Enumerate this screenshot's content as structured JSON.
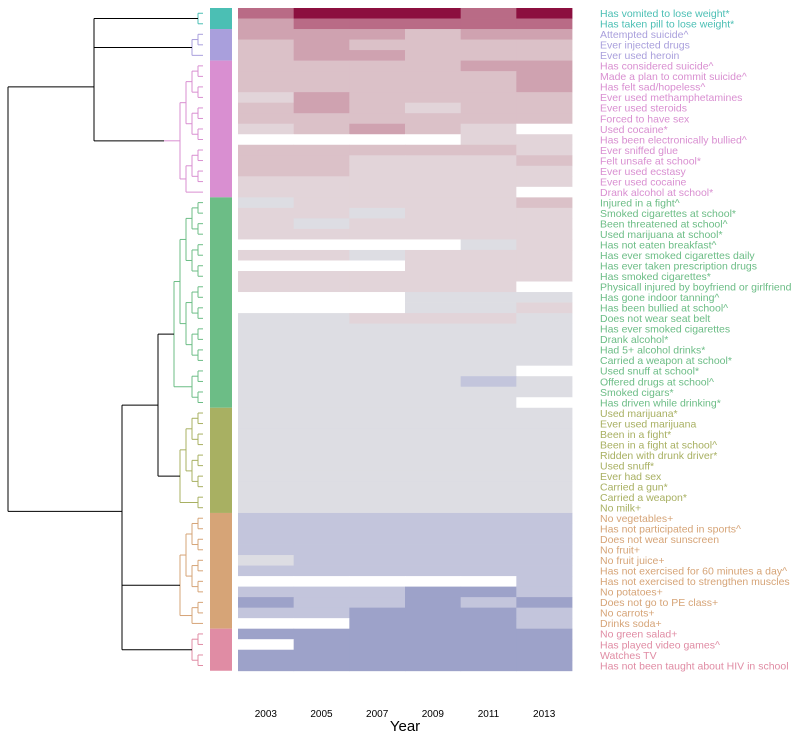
{
  "chart_data": {
    "type": "heatmap",
    "xlabel": "Year",
    "ylabel": "",
    "x": [
      "2003",
      "2005",
      "2007",
      "2009",
      "2011",
      "2013"
    ],
    "dendrogram": true,
    "cluster_colors": {
      "1": "#4bbfb4",
      "2": "#a99fdc",
      "3": "#d98fd1",
      "4": "#6cbd86",
      "5": "#a8b062",
      "6": "#d6a477",
      "7": "#e08ca4"
    },
    "value_colors": {
      "-2": "#9da2c9",
      "-1": "#c3c5dc",
      "0": "#dddde3",
      "1": "#e2d4d9",
      "2": "#dbc1c8",
      "3": "#cfa2b0",
      "4": "#b96b86",
      "5": "#8c0f3f",
      "missing": "#ffffff"
    },
    "rows": [
      {
        "label": "Has vomited to lose weight*",
        "cluster": 1,
        "values": [
          4,
          5,
          5,
          5,
          4,
          5
        ]
      },
      {
        "label": "Has taken pill to lose weight*",
        "cluster": 1,
        "values": [
          3,
          4,
          4,
          4,
          4,
          4
        ]
      },
      {
        "label": "Attempted suicide^",
        "cluster": 2,
        "values": [
          3,
          3,
          3,
          2,
          3,
          3
        ]
      },
      {
        "label": "Ever injected drugs",
        "cluster": 2,
        "values": [
          2,
          3,
          2,
          2,
          2,
          2
        ]
      },
      {
        "label": "Ever used heroin",
        "cluster": 2,
        "values": [
          2,
          3,
          3,
          2,
          2,
          2
        ]
      },
      {
        "label": "Has considered suicide^",
        "cluster": 3,
        "values": [
          2,
          2,
          2,
          2,
          3,
          3
        ]
      },
      {
        "label": "Made a plan to commit suicide^",
        "cluster": 3,
        "values": [
          2,
          2,
          2,
          2,
          2,
          3
        ]
      },
      {
        "label": "Has felt sad/hopeless^",
        "cluster": 3,
        "values": [
          2,
          2,
          2,
          2,
          2,
          3
        ]
      },
      {
        "label": "Ever used methamphetamines",
        "cluster": 3,
        "values": [
          1,
          3,
          2,
          2,
          2,
          2
        ]
      },
      {
        "label": "Ever used steroids",
        "cluster": 3,
        "values": [
          2,
          3,
          2,
          1,
          2,
          2
        ]
      },
      {
        "label": "Forced to have sex",
        "cluster": 3,
        "values": [
          2,
          2,
          2,
          2,
          2,
          2
        ]
      },
      {
        "label": "Used cocaine*",
        "cluster": 3,
        "values": [
          1,
          2,
          3,
          2,
          1,
          null
        ]
      },
      {
        "label": "Has been electronically bullied^",
        "cluster": 3,
        "values": [
          null,
          null,
          null,
          null,
          1,
          1
        ]
      },
      {
        "label": "Ever sniffed glue",
        "cluster": 3,
        "values": [
          2,
          2,
          2,
          2,
          2,
          1
        ]
      },
      {
        "label": "Felt unsafe at school*",
        "cluster": 3,
        "values": [
          2,
          2,
          1,
          1,
          1,
          2
        ]
      },
      {
        "label": "Ever used ecstasy",
        "cluster": 3,
        "values": [
          2,
          2,
          1,
          1,
          1,
          1
        ]
      },
      {
        "label": "Ever used cocaine",
        "cluster": 3,
        "values": [
          1,
          1,
          1,
          1,
          1,
          1
        ]
      },
      {
        "label": "Drank alcohol at school*",
        "cluster": 3,
        "values": [
          1,
          1,
          1,
          1,
          1,
          null
        ]
      },
      {
        "label": "Injured in a fight^",
        "cluster": 4,
        "values": [
          0,
          1,
          1,
          1,
          1,
          2
        ]
      },
      {
        "label": "Smoked cigarettes at school*",
        "cluster": 4,
        "values": [
          1,
          1,
          0,
          1,
          1,
          1
        ]
      },
      {
        "label": "Been threatened at school^",
        "cluster": 4,
        "values": [
          1,
          0,
          1,
          1,
          1,
          1
        ]
      },
      {
        "label": "Used marijuana at school*",
        "cluster": 4,
        "values": [
          1,
          1,
          1,
          1,
          1,
          1
        ]
      },
      {
        "label": "Has not eaten breakfast^",
        "cluster": 4,
        "values": [
          null,
          null,
          null,
          null,
          0,
          1
        ]
      },
      {
        "label": "Has ever smoked cigarettes daily",
        "cluster": 4,
        "values": [
          1,
          1,
          0,
          1,
          1,
          1
        ]
      },
      {
        "label": "Has ever taken prescription drugs",
        "cluster": 4,
        "values": [
          null,
          null,
          null,
          1,
          1,
          1
        ]
      },
      {
        "label": "Has smoked cigarettes*",
        "cluster": 4,
        "values": [
          1,
          1,
          1,
          1,
          1,
          1
        ]
      },
      {
        "label": "Physicall injured by boyfriend or girlfriend",
        "cluster": 4,
        "values": [
          1,
          1,
          1,
          1,
          1,
          null
        ]
      },
      {
        "label": "Has gone indoor tanning^",
        "cluster": 4,
        "values": [
          null,
          null,
          null,
          0,
          0,
          0
        ]
      },
      {
        "label": "Has been bullied at school^",
        "cluster": 4,
        "values": [
          null,
          null,
          null,
          0,
          0,
          1
        ]
      },
      {
        "label": "Does not wear seat belt",
        "cluster": 4,
        "values": [
          0,
          0,
          1,
          1,
          1,
          0
        ]
      },
      {
        "label": "Has ever smoked cigarettes",
        "cluster": 4,
        "values": [
          0,
          0,
          0,
          0,
          0,
          0
        ]
      },
      {
        "label": "Drank alcohol*",
        "cluster": 4,
        "values": [
          0,
          0,
          0,
          0,
          0,
          0
        ]
      },
      {
        "label": "Had 5+ alcohol drinks*",
        "cluster": 4,
        "values": [
          0,
          0,
          0,
          0,
          0,
          0
        ]
      },
      {
        "label": "Carried a weapon at school*",
        "cluster": 4,
        "values": [
          0,
          0,
          0,
          0,
          0,
          0
        ]
      },
      {
        "label": "Used snuff at school*",
        "cluster": 4,
        "values": [
          0,
          0,
          0,
          0,
          0,
          null
        ]
      },
      {
        "label": "Offered drugs at school^",
        "cluster": 4,
        "values": [
          0,
          0,
          0,
          0,
          -1,
          0
        ]
      },
      {
        "label": "Smoked cigars*",
        "cluster": 4,
        "values": [
          0,
          0,
          0,
          0,
          0,
          0
        ]
      },
      {
        "label": "Has driven while drinking*",
        "cluster": 4,
        "values": [
          0,
          0,
          0,
          0,
          0,
          null
        ]
      },
      {
        "label": "Used marijuana*",
        "cluster": 5,
        "values": [
          0,
          0,
          0,
          0,
          0,
          0
        ]
      },
      {
        "label": "Ever used marijuana",
        "cluster": 5,
        "values": [
          0,
          0,
          0,
          0,
          0,
          0
        ]
      },
      {
        "label": "Been in a fight*",
        "cluster": 5,
        "values": [
          0,
          0,
          0,
          0,
          0,
          0
        ]
      },
      {
        "label": "Been in a fight at school^",
        "cluster": 5,
        "values": [
          0,
          0,
          0,
          0,
          0,
          0
        ]
      },
      {
        "label": "Ridden with drunk driver*",
        "cluster": 5,
        "values": [
          0,
          0,
          0,
          0,
          0,
          0
        ]
      },
      {
        "label": "Used snuff*",
        "cluster": 5,
        "values": [
          0,
          0,
          0,
          0,
          0,
          0
        ]
      },
      {
        "label": "Ever had sex",
        "cluster": 5,
        "values": [
          0,
          0,
          0,
          0,
          0,
          0
        ]
      },
      {
        "label": "Carried a gun*",
        "cluster": 5,
        "values": [
          0,
          0,
          0,
          0,
          0,
          0
        ]
      },
      {
        "label": "Carried a weapon*",
        "cluster": 5,
        "values": [
          0,
          0,
          0,
          0,
          0,
          0
        ]
      },
      {
        "label": "No milk+",
        "cluster": 5,
        "values": [
          0,
          0,
          0,
          0,
          0,
          0
        ]
      },
      {
        "label": "No vegetables+",
        "cluster": 6,
        "values": [
          -1,
          -1,
          -1,
          -1,
          -1,
          -1
        ]
      },
      {
        "label": "Has not participated in sports^",
        "cluster": 6,
        "values": [
          -1,
          -1,
          -1,
          -1,
          -1,
          -1
        ]
      },
      {
        "label": "Does not wear sunscreen",
        "cluster": 6,
        "values": [
          -1,
          -1,
          -1,
          -1,
          -1,
          -1
        ]
      },
      {
        "label": "No fruit+",
        "cluster": 6,
        "values": [
          -1,
          -1,
          -1,
          -1,
          -1,
          -1
        ]
      },
      {
        "label": "No fruit juice+",
        "cluster": 6,
        "values": [
          0,
          -1,
          -1,
          -1,
          -1,
          -1
        ]
      },
      {
        "label": "Has not exercised for 60 minutes a day^",
        "cluster": 6,
        "values": [
          -1,
          -1,
          -1,
          -1,
          -1,
          -1
        ]
      },
      {
        "label": "Has not exercised to strengthen muscles",
        "cluster": 6,
        "values": [
          null,
          null,
          null,
          null,
          null,
          -1
        ]
      },
      {
        "label": "No potatoes+",
        "cluster": 6,
        "values": [
          -1,
          -1,
          -1,
          -2,
          -2,
          -1
        ]
      },
      {
        "label": "Does not go to PE class+",
        "cluster": 6,
        "values": [
          -2,
          -1,
          -1,
          -2,
          -1,
          -2
        ]
      },
      {
        "label": "No carrots+",
        "cluster": 6,
        "values": [
          -1,
          -1,
          -2,
          -2,
          -2,
          -1
        ]
      },
      {
        "label": "Drinks soda+",
        "cluster": 6,
        "values": [
          null,
          null,
          -2,
          -2,
          -2,
          -1
        ]
      },
      {
        "label": "No green salad+",
        "cluster": 7,
        "values": [
          -2,
          -2,
          -2,
          -2,
          -2,
          -2
        ]
      },
      {
        "label": "Has played video games^",
        "cluster": 7,
        "values": [
          null,
          -2,
          -2,
          -2,
          -2,
          -2
        ]
      },
      {
        "label": "Watches TV",
        "cluster": 7,
        "values": [
          -2,
          -2,
          -2,
          -2,
          -2,
          -2
        ]
      },
      {
        "label": "Has not been taught about HIV in school",
        "cluster": 7,
        "values": [
          -2,
          -2,
          -2,
          -2,
          -2,
          -2
        ]
      }
    ]
  }
}
